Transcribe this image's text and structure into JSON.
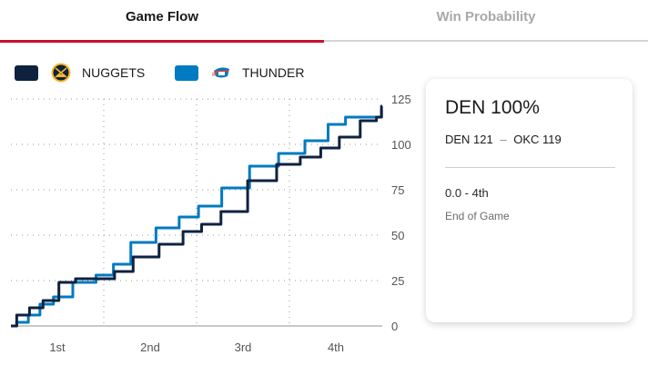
{
  "tabs": [
    {
      "label": "Game Flow",
      "active": true
    },
    {
      "label": "Win Probability",
      "active": false
    }
  ],
  "colors": {
    "accent": "#c8102e",
    "nuggets": "#0e2240",
    "thunder": "#007ac1"
  },
  "legend": [
    {
      "label": "NUGGETS",
      "color": "#0e2240",
      "icon": "nuggets-logo-icon"
    },
    {
      "label": "THUNDER",
      "color": "#007ac1",
      "icon": "thunder-logo-icon"
    }
  ],
  "card": {
    "probability": "DEN 100%",
    "score_home": "DEN 121",
    "score_sep": "–",
    "score_away": "OKC 119",
    "clock": "0.0 - 4th",
    "status": "End of Game"
  },
  "chart_data": {
    "type": "line",
    "title": "Game Flow",
    "xlabel": "",
    "ylabel": "",
    "x_ticks": [
      "1st",
      "2nd",
      "3rd",
      "4th"
    ],
    "xlim": [
      0,
      48
    ],
    "ylim": [
      0,
      125
    ],
    "y_ticks": [
      0,
      25,
      50,
      75,
      100,
      125
    ],
    "grid": true,
    "y_axis_position": "right",
    "legend_position": "top-left",
    "series": [
      {
        "name": "NUGGETS",
        "color": "#0e2240",
        "x": [
          0,
          1.5,
          3.3,
          5,
          7.4,
          9.3,
          12.5,
          14.3,
          17.3,
          21,
          23.5,
          25.8,
          28.5,
          32.7,
          36,
          38.8,
          41.3,
          43.6,
          46.7,
          47.8,
          48
        ],
        "y": [
          0,
          6,
          10,
          14,
          24,
          26,
          26,
          30,
          38,
          45,
          52,
          56,
          63,
          80,
          89,
          93,
          98,
          104,
          113,
          115,
          121
        ]
      },
      {
        "name": "THUNDER",
        "color": "#007ac1",
        "x": [
          0,
          1.5,
          3,
          4.5,
          6.5,
          9.5,
          12.5,
          14,
          17,
          20.5,
          23,
          25.5,
          29,
          32.7,
          36.5,
          39.5,
          42.5,
          44,
          46.7,
          47.8,
          48
        ],
        "y": [
          0,
          2,
          6,
          12,
          16,
          24,
          28,
          34,
          46,
          54,
          60,
          66,
          76,
          88,
          95,
          102,
          111,
          115,
          115,
          115,
          119
        ]
      }
    ]
  }
}
